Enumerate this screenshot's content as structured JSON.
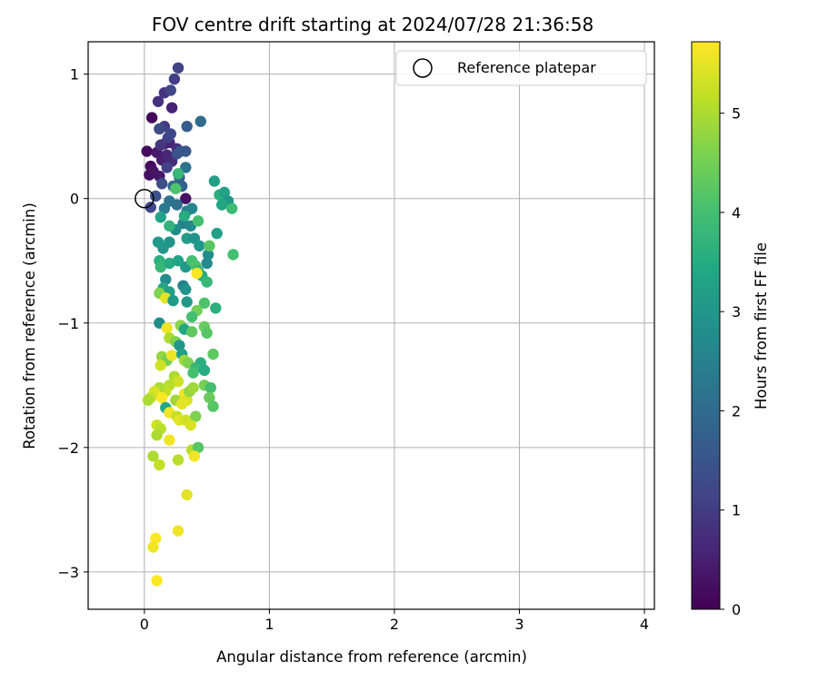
{
  "chart_data": {
    "type": "scatter",
    "title": "FOV centre drift starting at 2024/07/28 21:36:58",
    "xlabel": "Angular distance from reference (arcmin)",
    "ylabel": "Rotation from reference (arcmin)",
    "xlim": [
      -0.45,
      4.08
    ],
    "ylim": [
      -3.3,
      1.26
    ],
    "xticks": [
      0,
      1,
      2,
      3,
      4
    ],
    "yticks": [
      -3,
      -2,
      -1,
      0,
      1
    ],
    "grid": true,
    "legend": {
      "placement": "top-right",
      "entries": [
        "Reference platepar"
      ]
    },
    "colorbar": {
      "label": "Hours from first FF file",
      "colormap": "viridis",
      "range": [
        0,
        5.72
      ],
      "ticks": [
        0,
        1,
        2,
        3,
        4,
        5
      ]
    },
    "reference_point": {
      "x": 0,
      "y": 0
    },
    "points": [
      {
        "x": 0.06,
        "y": 0.65,
        "c": 0.1
      },
      {
        "x": 0.05,
        "y": 0.26,
        "c": 0.15
      },
      {
        "x": 0.02,
        "y": 0.38,
        "c": 0.2
      },
      {
        "x": 0.04,
        "y": 0.19,
        "c": 0.25
      },
      {
        "x": 0.07,
        "y": 0.22,
        "c": 0.3
      },
      {
        "x": 0.12,
        "y": 0.18,
        "c": 0.35
      },
      {
        "x": 0.1,
        "y": 0.37,
        "c": 0.4
      },
      {
        "x": 0.14,
        "y": 0.31,
        "c": 0.45
      },
      {
        "x": 0.16,
        "y": 0.44,
        "c": 0.5
      },
      {
        "x": 0.22,
        "y": 0.73,
        "c": 0.55
      },
      {
        "x": 0.2,
        "y": 0.45,
        "c": 0.6
      },
      {
        "x": 0.18,
        "y": 0.35,
        "c": 0.65
      },
      {
        "x": 0.22,
        "y": 0.3,
        "c": 0.7
      },
      {
        "x": 0.26,
        "y": 0.4,
        "c": 0.75
      },
      {
        "x": 0.11,
        "y": 0.78,
        "c": 0.8
      },
      {
        "x": 0.16,
        "y": 0.85,
        "c": 0.85
      },
      {
        "x": 0.33,
        "y": 0.0,
        "c": 0.3
      },
      {
        "x": 0.13,
        "y": 0.43,
        "c": 0.9
      },
      {
        "x": 0.24,
        "y": 0.96,
        "c": 1.05
      },
      {
        "x": 0.27,
        "y": 1.05,
        "c": 1.15
      },
      {
        "x": 0.21,
        "y": 0.87,
        "c": 1.2
      },
      {
        "x": 0.16,
        "y": 0.58,
        "c": 1.0
      },
      {
        "x": 0.19,
        "y": 0.49,
        "c": 1.05
      },
      {
        "x": 0.21,
        "y": 0.52,
        "c": 1.25
      },
      {
        "x": 0.12,
        "y": 0.56,
        "c": 1.3
      },
      {
        "x": 0.18,
        "y": 0.25,
        "c": 1.1
      },
      {
        "x": 0.05,
        "y": -0.07,
        "c": 1.2
      },
      {
        "x": 0.14,
        "y": 0.12,
        "c": 1.35
      },
      {
        "x": 0.09,
        "y": 0.02,
        "c": 1.4
      },
      {
        "x": 0.26,
        "y": 0.36,
        "c": 1.45
      },
      {
        "x": 0.29,
        "y": 0.38,
        "c": 1.5
      },
      {
        "x": 0.33,
        "y": 0.38,
        "c": 1.55
      },
      {
        "x": 0.34,
        "y": 0.58,
        "c": 1.7
      },
      {
        "x": 0.45,
        "y": 0.62,
        "c": 2.0
      },
      {
        "x": 0.33,
        "y": 0.25,
        "c": 2.2
      },
      {
        "x": 0.3,
        "y": 0.1,
        "c": 1.75
      },
      {
        "x": 0.28,
        "y": 0.17,
        "c": 1.8
      },
      {
        "x": 0.23,
        "y": 0.1,
        "c": 1.9
      },
      {
        "x": 0.26,
        "y": -0.05,
        "c": 2.1
      },
      {
        "x": 0.2,
        "y": -0.02,
        "c": 2.2
      },
      {
        "x": 0.16,
        "y": -0.08,
        "c": 2.3
      },
      {
        "x": 0.34,
        "y": -0.1,
        "c": 2.4
      },
      {
        "x": 0.38,
        "y": -0.08,
        "c": 2.6
      },
      {
        "x": 0.31,
        "y": -0.2,
        "c": 2.5
      },
      {
        "x": 0.37,
        "y": -0.22,
        "c": 2.7
      },
      {
        "x": 0.25,
        "y": -0.25,
        "c": 2.8
      },
      {
        "x": 0.2,
        "y": -0.35,
        "c": 2.9
      },
      {
        "x": 0.15,
        "y": -0.4,
        "c": 3.0
      },
      {
        "x": 0.11,
        "y": -0.35,
        "c": 3.1
      },
      {
        "x": 0.34,
        "y": -0.32,
        "c": 3.15
      },
      {
        "x": 0.4,
        "y": -0.32,
        "c": 2.9
      },
      {
        "x": 0.44,
        "y": -0.38,
        "c": 3.0
      },
      {
        "x": 0.51,
        "y": -0.45,
        "c": 2.8
      },
      {
        "x": 0.5,
        "y": -0.52,
        "c": 2.7
      },
      {
        "x": 0.56,
        "y": 0.14,
        "c": 3.2
      },
      {
        "x": 0.6,
        "y": 0.03,
        "c": 3.6
      },
      {
        "x": 0.64,
        "y": 0.05,
        "c": 3.3
      },
      {
        "x": 0.67,
        "y": -0.02,
        "c": 3.0
      },
      {
        "x": 0.62,
        "y": -0.05,
        "c": 3.4
      },
      {
        "x": 0.7,
        "y": -0.08,
        "c": 3.9
      },
      {
        "x": 0.58,
        "y": -0.28,
        "c": 3.2
      },
      {
        "x": 0.52,
        "y": -0.38,
        "c": 4.2
      },
      {
        "x": 0.71,
        "y": -0.45,
        "c": 4.0
      },
      {
        "x": 0.43,
        "y": -0.18,
        "c": 4.0
      },
      {
        "x": 0.32,
        "y": -0.14,
        "c": 3.5
      },
      {
        "x": 0.13,
        "y": -0.15,
        "c": 3.3
      },
      {
        "x": 0.2,
        "y": -0.22,
        "c": 3.7
      },
      {
        "x": 0.27,
        "y": 0.2,
        "c": 3.8
      },
      {
        "x": 0.25,
        "y": 0.08,
        "c": 4.1
      },
      {
        "x": 0.12,
        "y": -0.5,
        "c": 3.6
      },
      {
        "x": 0.13,
        "y": -0.55,
        "c": 3.8
      },
      {
        "x": 0.2,
        "y": -0.52,
        "c": 3.5
      },
      {
        "x": 0.27,
        "y": -0.5,
        "c": 3.3
      },
      {
        "x": 0.33,
        "y": -0.55,
        "c": 3.1
      },
      {
        "x": 0.38,
        "y": -0.5,
        "c": 4.0
      },
      {
        "x": 0.41,
        "y": -0.54,
        "c": 4.1
      },
      {
        "x": 0.43,
        "y": -0.58,
        "c": 3.7
      },
      {
        "x": 0.46,
        "y": -0.62,
        "c": 3.5
      },
      {
        "x": 0.5,
        "y": -0.67,
        "c": 3.8
      },
      {
        "x": 0.31,
        "y": -0.7,
        "c": 2.5
      },
      {
        "x": 0.33,
        "y": -0.73,
        "c": 2.9
      },
      {
        "x": 0.17,
        "y": -0.65,
        "c": 2.7
      },
      {
        "x": 0.15,
        "y": -0.72,
        "c": 3.4
      },
      {
        "x": 0.2,
        "y": -0.75,
        "c": 3.2
      },
      {
        "x": 0.12,
        "y": -0.76,
        "c": 4.6
      },
      {
        "x": 0.17,
        "y": -0.8,
        "c": 5.5
      },
      {
        "x": 0.23,
        "y": -0.82,
        "c": 3.1
      },
      {
        "x": 0.34,
        "y": -0.83,
        "c": 3.0
      },
      {
        "x": 0.48,
        "y": -0.84,
        "c": 4.1
      },
      {
        "x": 0.57,
        "y": -0.88,
        "c": 3.6
      },
      {
        "x": 0.42,
        "y": -0.9,
        "c": 4.5
      },
      {
        "x": 0.38,
        "y": -0.95,
        "c": 4.0
      },
      {
        "x": 0.12,
        "y": -1.0,
        "c": 2.8
      },
      {
        "x": 0.18,
        "y": -1.04,
        "c": 5.6
      },
      {
        "x": 0.29,
        "y": -1.02,
        "c": 4.7
      },
      {
        "x": 0.32,
        "y": -1.05,
        "c": 3.4
      },
      {
        "x": 0.38,
        "y": -1.07,
        "c": 4.3
      },
      {
        "x": 0.48,
        "y": -1.03,
        "c": 4.4
      },
      {
        "x": 0.5,
        "y": -1.08,
        "c": 4.2
      },
      {
        "x": 0.2,
        "y": -1.12,
        "c": 5.0
      },
      {
        "x": 0.25,
        "y": -1.15,
        "c": 4.6
      },
      {
        "x": 0.28,
        "y": -1.18,
        "c": 3.0
      },
      {
        "x": 0.14,
        "y": -1.27,
        "c": 4.8
      },
      {
        "x": 0.18,
        "y": -1.3,
        "c": 4.5
      },
      {
        "x": 0.22,
        "y": -1.26,
        "c": 5.6
      },
      {
        "x": 0.3,
        "y": -1.25,
        "c": 3.2
      },
      {
        "x": 0.32,
        "y": -1.3,
        "c": 4.9
      },
      {
        "x": 0.35,
        "y": -1.32,
        "c": 4.6
      },
      {
        "x": 0.13,
        "y": -1.34,
        "c": 5.3
      },
      {
        "x": 0.45,
        "y": -1.32,
        "c": 3.6
      },
      {
        "x": 0.41,
        "y": -1.36,
        "c": 3.8
      },
      {
        "x": 0.39,
        "y": -1.4,
        "c": 4.0
      },
      {
        "x": 0.48,
        "y": -1.38,
        "c": 3.5
      },
      {
        "x": 0.55,
        "y": -1.25,
        "c": 4.3
      },
      {
        "x": 0.24,
        "y": -1.43,
        "c": 5.0
      },
      {
        "x": 0.27,
        "y": -1.47,
        "c": 5.3
      },
      {
        "x": 0.2,
        "y": -1.5,
        "c": 5.1
      },
      {
        "x": 0.17,
        "y": -1.55,
        "c": 5.2
      },
      {
        "x": 0.12,
        "y": -1.52,
        "c": 5.0
      },
      {
        "x": 0.08,
        "y": -1.55,
        "c": 5.4
      },
      {
        "x": 0.05,
        "y": -1.6,
        "c": 5.2
      },
      {
        "x": 0.03,
        "y": -1.62,
        "c": 5.0
      },
      {
        "x": 0.14,
        "y": -1.6,
        "c": 5.7
      },
      {
        "x": 0.25,
        "y": -1.62,
        "c": 4.9
      },
      {
        "x": 0.32,
        "y": -1.57,
        "c": 5.6
      },
      {
        "x": 0.34,
        "y": -1.62,
        "c": 5.4
      },
      {
        "x": 0.3,
        "y": -1.65,
        "c": 5.5
      },
      {
        "x": 0.36,
        "y": -1.55,
        "c": 4.8
      },
      {
        "x": 0.39,
        "y": -1.52,
        "c": 4.9
      },
      {
        "x": 0.48,
        "y": -1.5,
        "c": 4.5
      },
      {
        "x": 0.53,
        "y": -1.52,
        "c": 4.0
      },
      {
        "x": 0.52,
        "y": -1.6,
        "c": 4.4
      },
      {
        "x": 0.55,
        "y": -1.67,
        "c": 4.2
      },
      {
        "x": 0.17,
        "y": -1.68,
        "c": 3.4
      },
      {
        "x": 0.2,
        "y": -1.72,
        "c": 5.6
      },
      {
        "x": 0.26,
        "y": -1.75,
        "c": 5.2
      },
      {
        "x": 0.28,
        "y": -1.78,
        "c": 5.5
      },
      {
        "x": 0.33,
        "y": -1.78,
        "c": 5.3
      },
      {
        "x": 0.41,
        "y": -1.75,
        "c": 4.6
      },
      {
        "x": 0.1,
        "y": -1.82,
        "c": 5.3
      },
      {
        "x": 0.13,
        "y": -1.85,
        "c": 5.1
      },
      {
        "x": 0.1,
        "y": -1.9,
        "c": 5.0
      },
      {
        "x": 0.2,
        "y": -1.94,
        "c": 5.6
      },
      {
        "x": 0.37,
        "y": -1.82,
        "c": 5.4
      },
      {
        "x": 0.38,
        "y": -2.02,
        "c": 5.1
      },
      {
        "x": 0.43,
        "y": -2.0,
        "c": 4.2
      },
      {
        "x": 0.4,
        "y": -2.07,
        "c": 5.6
      },
      {
        "x": 0.07,
        "y": -2.07,
        "c": 5.0
      },
      {
        "x": 0.12,
        "y": -2.14,
        "c": 5.2
      },
      {
        "x": 0.27,
        "y": -2.1,
        "c": 5.1
      },
      {
        "x": 0.34,
        "y": -2.38,
        "c": 5.5
      },
      {
        "x": 0.27,
        "y": -2.67,
        "c": 5.6
      },
      {
        "x": 0.09,
        "y": -2.73,
        "c": 5.7
      },
      {
        "x": 0.07,
        "y": -2.8,
        "c": 5.6
      },
      {
        "x": 0.1,
        "y": -3.07,
        "c": 5.7
      },
      {
        "x": 0.42,
        "y": -0.6,
        "c": 5.7
      }
    ]
  }
}
